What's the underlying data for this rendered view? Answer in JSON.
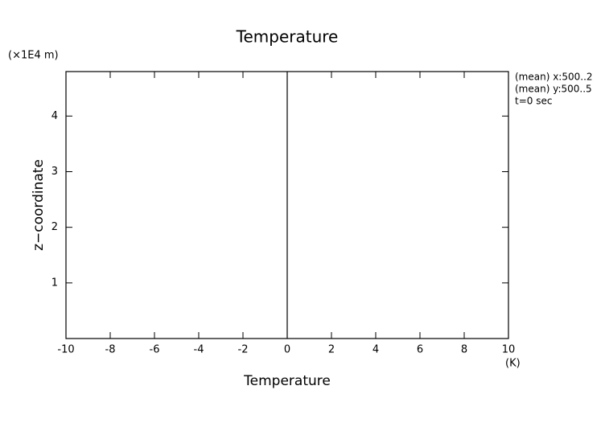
{
  "chart_data": {
    "type": "line",
    "title": "Temperature",
    "xlabel": "Temperature",
    "xunit": "(K)",
    "ylabel": "z−coordinate",
    "yunit": "(×1E4 m)",
    "annotations": [
      "(mean) x:500..2",
      "(mean) y:500..5",
      "t=0 sec"
    ],
    "series": [
      {
        "color": "#000000",
        "values": [
          0,
          0
        ],
        "z": [
          0,
          4.8
        ]
      }
    ],
    "xlim": [
      -10,
      10
    ],
    "xticks": [
      -10,
      -8,
      -6,
      -4,
      -2,
      0,
      2,
      4,
      6,
      8,
      10
    ],
    "ylim": [
      0,
      4.8
    ],
    "yticks": [
      1,
      2,
      3,
      4
    ]
  }
}
